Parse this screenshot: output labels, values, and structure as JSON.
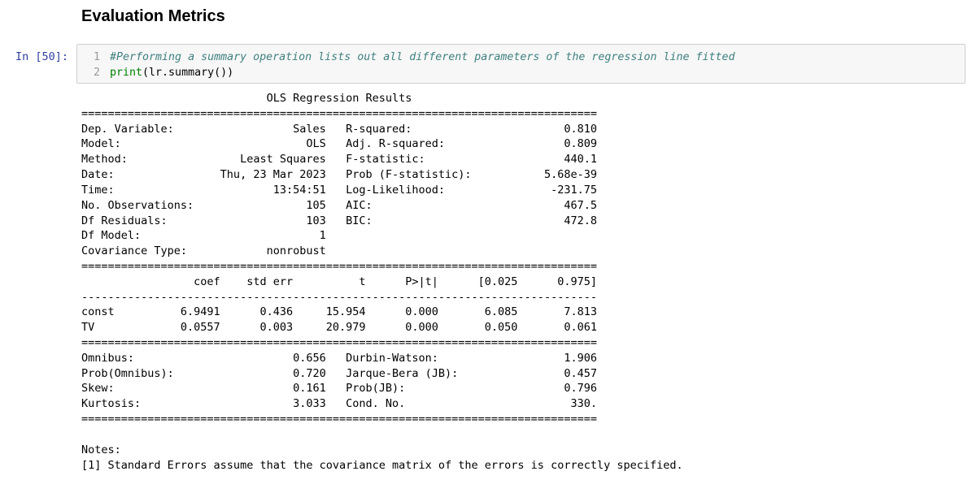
{
  "heading": "Evaluation Metrics",
  "cell": {
    "prompt": "In [50]:",
    "lines": [
      {
        "num": "1",
        "text": "#Performing a summary operation lists out all different parameters of the regression line fitted",
        "kind": "comment"
      },
      {
        "num": "2",
        "builtin": "print",
        "rest": "(lr.summary())",
        "kind": "code"
      }
    ]
  },
  "output": {
    "text": "                            OLS Regression Results                            \n==============================================================================\nDep. Variable:                  Sales   R-squared:                       0.810\nModel:                            OLS   Adj. R-squared:                  0.809\nMethod:                 Least Squares   F-statistic:                     440.1\nDate:                Thu, 23 Mar 2023   Prob (F-statistic):           5.68e-39\nTime:                        13:54:51   Log-Likelihood:                -231.75\nNo. Observations:                 105   AIC:                             467.5\nDf Residuals:                     103   BIC:                             472.8\nDf Model:                           1                                         \nCovariance Type:            nonrobust                                         \n==============================================================================\n                 coef    std err          t      P>|t|      [0.025      0.975]\n------------------------------------------------------------------------------\nconst          6.9491      0.436     15.954      0.000       6.085       7.813\nTV             0.0557      0.003     20.979      0.000       0.050       0.061\n==============================================================================\nOmnibus:                        0.656   Durbin-Watson:                   1.906\nProb(Omnibus):                  0.720   Jarque-Bera (JB):                0.457\nSkew:                           0.161   Prob(JB):                        0.796\nKurtosis:                       3.033   Cond. No.                         330.\n==============================================================================\n\nNotes:\n[1] Standard Errors assume that the covariance matrix of the errors is correctly specified."
  },
  "colors": {
    "prompt": "#303f9f",
    "comment": "#408080",
    "builtin": "#008000",
    "cell_bg": "#f7f7f7",
    "cell_border": "#cfcfcf"
  }
}
